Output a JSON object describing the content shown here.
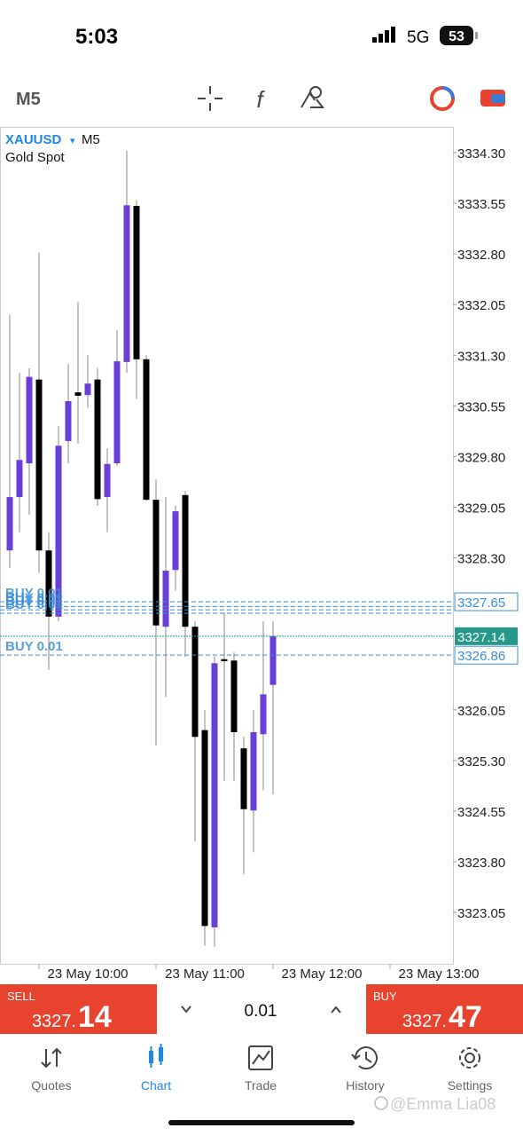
{
  "status_bar": {
    "time": "5:03",
    "network": "5G",
    "battery": "53"
  },
  "toolbar": {
    "timeframe": "M5"
  },
  "chart_data": {
    "type": "candlestick",
    "title": "XAUUSD",
    "symbol_menu": "▾",
    "timeframe": "M5",
    "subtitle": "Gold Spot",
    "open": [
      3328.41,
      3329.2,
      3329.7,
      3330.94,
      3328.41,
      3327.43,
      3330.03,
      3330.75,
      3330.71,
      3330.94,
      3329.2,
      3329.7,
      3331.2,
      3333.51,
      3331.24,
      3329.16,
      3327.28,
      3328.12,
      3329.23,
      3327.28,
      3325.75,
      3322.83,
      3326.8,
      3326.78,
      3325.48,
      3324.56,
      3325.69,
      3326.42
    ],
    "high": [
      3331.9,
      3331.04,
      3331.11,
      3332.82,
      3328.68,
      3330.25,
      3331.17,
      3332.09,
      3331.3,
      3331.11,
      3329.92,
      3331.67,
      3334.33,
      3333.6,
      3331.3,
      3329.46,
      3329.2,
      3329.07,
      3329.29,
      3327.36,
      3326.05,
      3326.84,
      3327.49,
      3326.9,
      3325.65,
      3326.05,
      3327.36,
      3327.36
    ],
    "low": [
      3328.15,
      3328.68,
      3328.94,
      3328.08,
      3326.64,
      3327.36,
      3329.7,
      3329.99,
      3330.52,
      3329.07,
      3328.68,
      3329.66,
      3331.04,
      3330.65,
      3329.14,
      3325.52,
      3326.24,
      3327.82,
      3326.84,
      3324.1,
      3322.56,
      3322.54,
      3325.0,
      3325.0,
      3323.62,
      3323.94,
      3324.86,
      3324.8
    ],
    "close": [
      3329.2,
      3329.75,
      3330.98,
      3328.41,
      3327.43,
      3329.96,
      3330.62,
      3330.7,
      3330.88,
      3329.17,
      3329.69,
      3331.21,
      3333.52,
      3331.24,
      3329.16,
      3327.3,
      3328.11,
      3328.99,
      3327.28,
      3325.65,
      3322.85,
      3326.74,
      3326.77,
      3325.72,
      3324.58,
      3325.72,
      3326.28,
      3327.14
    ],
    "up_color": "#6a3fd9",
    "down_color": "#000000",
    "ylim": [
      3322.29,
      3334.68
    ],
    "yticks": [
      {
        "value": 3334.3,
        "label": "3334.30"
      },
      3333.55,
      {
        "value": 3332.8,
        "label": "3332.80"
      },
      3332.05,
      {
        "value": 3331.3,
        "label": "3331.30"
      },
      3330.55,
      {
        "value": 3329.8,
        "label": "3329.80"
      },
      3329.05,
      {
        "value": 3328.3,
        "label": "3328.30"
      },
      3326.05,
      {
        "value": 3325.3,
        "label": "3325.30"
      },
      3324.55,
      {
        "value": 3323.8,
        "label": "3323.80"
      },
      3323.05
    ],
    "time_labels": [
      "23 May 10:00",
      "23 May 11:00",
      "23 May 12:00",
      "23 May 13:00"
    ],
    "orders": [
      {
        "label": "BUY 0.01",
        "price": 3327.65
      },
      {
        "label": "BUY 0.01",
        "price": 3327.58
      },
      {
        "label": "BUY 0.01",
        "price": 3327.53
      },
      {
        "label": "BUY 0.01",
        "price": 3327.48
      },
      {
        "label": "BUY 0.01",
        "price": 3326.86
      }
    ],
    "bid": 3327.14,
    "order_color": "#3a8fd8",
    "bid_color": "#26998a"
  },
  "trade_bar": {
    "sell_label": "SELL",
    "sell_main": "3327.",
    "sell_pips": "14",
    "volume": "0.01",
    "buy_label": "BUY",
    "buy_main": "3327.",
    "buy_pips": "47"
  },
  "nav": [
    "Quotes",
    "Chart",
    "Trade",
    "History",
    "Settings"
  ],
  "watermark": "@Emma Lia08"
}
